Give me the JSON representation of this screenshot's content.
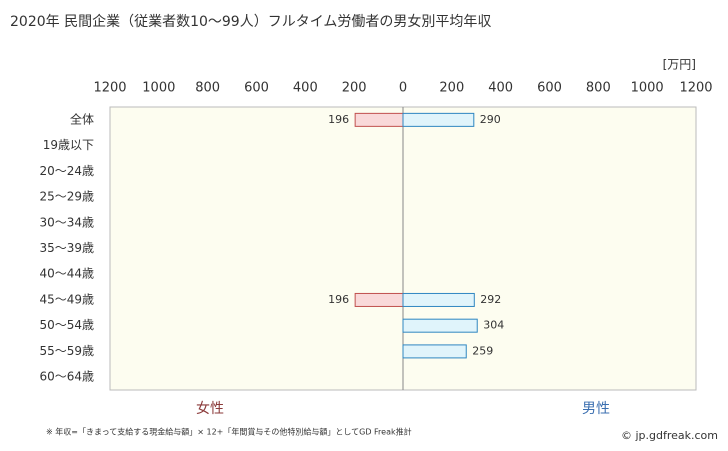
{
  "chart_data": {
    "type": "butterfly-bar",
    "title": "2020年 民間企業（従業者数10～99人）フルタイム労働者の男女別平均年収",
    "unit": "[万円]",
    "categories": [
      "全体",
      "19歳以下",
      "20～24歳",
      "25～29歳",
      "30～34歳",
      "35～39歳",
      "40～44歳",
      "45～49歳",
      "50～54歳",
      "55～59歳",
      "60～64歳"
    ],
    "series": [
      {
        "name": "女性",
        "side": "left",
        "color": "#f9d9d9",
        "stroke": "#c0504d",
        "label_color": "#8b3a3a",
        "values": [
          196,
          null,
          null,
          null,
          null,
          null,
          null,
          196,
          null,
          null,
          null
        ]
      },
      {
        "name": "男性",
        "side": "right",
        "color": "#e0f4fb",
        "stroke": "#2e86c1",
        "label_color": "#3b6fb0",
        "values": [
          290,
          null,
          null,
          null,
          null,
          null,
          null,
          292,
          304,
          259,
          null
        ]
      }
    ],
    "xlim": [
      -1200,
      1200
    ],
    "xticks": [
      {
        "value": -1200,
        "label": "1200"
      },
      {
        "value": -1000,
        "label": "1000"
      },
      {
        "value": -800,
        "label": "800"
      },
      {
        "value": -600,
        "label": "600"
      },
      {
        "value": -400,
        "label": "400"
      },
      {
        "value": -200,
        "label": "200"
      },
      0,
      200,
      400,
      600,
      800,
      1000,
      1200
    ],
    "note": "※ 年収=「きまって支給する現金給与額」× 12+「年間賞与その他特別給与額」としてGD Freak推計",
    "source": "© jp.gdfreak.com"
  }
}
